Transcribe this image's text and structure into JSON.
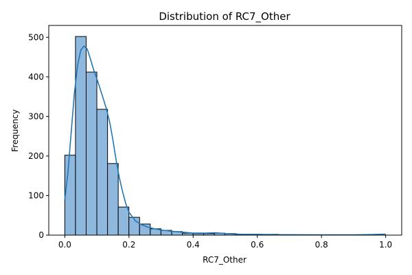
{
  "chart_data": {
    "type": "histogram",
    "title": "Distribution of RC7_Other",
    "xlabel": "RC7_Other",
    "ylabel": "Frequency",
    "xlim": [
      -0.05,
      1.05
    ],
    "ylim": [
      0,
      530
    ],
    "xticks": [
      0.0,
      0.2,
      0.4,
      0.6,
      0.8,
      1.0
    ],
    "xtick_labels": [
      "0.0",
      "0.2",
      "0.4",
      "0.6",
      "0.8",
      "1.0"
    ],
    "yticks": [
      0,
      100,
      200,
      300,
      400,
      500
    ],
    "ytick_labels": [
      "0",
      "100",
      "200",
      "300",
      "400",
      "500"
    ],
    "bin_start": 0.0,
    "bin_width": 0.0333,
    "counts": [
      202,
      502,
      412,
      318,
      181,
      71,
      45,
      28,
      16,
      12,
      9,
      5,
      4,
      4,
      5,
      4,
      1,
      1,
      1,
      2,
      1,
      1,
      1,
      1,
      1,
      1,
      1,
      1,
      1,
      2
    ],
    "kde": {
      "x": [
        0.0,
        0.01,
        0.02,
        0.03,
        0.04,
        0.05,
        0.06,
        0.07,
        0.08,
        0.09,
        0.1,
        0.11,
        0.12,
        0.13,
        0.14,
        0.15,
        0.16,
        0.17,
        0.18,
        0.19,
        0.2,
        0.22,
        0.24,
        0.26,
        0.28,
        0.3,
        0.33,
        0.36,
        0.4,
        0.44,
        0.47,
        0.5,
        0.55,
        0.6,
        0.65,
        0.7,
        0.8,
        0.9,
        0.97,
        1.0
      ],
      "y": [
        90,
        160,
        260,
        360,
        430,
        468,
        478,
        470,
        445,
        418,
        395,
        370,
        345,
        318,
        285,
        240,
        190,
        145,
        110,
        80,
        58,
        36,
        26,
        20,
        16,
        13,
        10,
        8,
        5,
        5,
        6,
        4,
        2,
        2,
        1,
        1,
        0.5,
        0.5,
        1.5,
        2.5
      ]
    },
    "bar_color": "#8fb8de",
    "bar_edge_color": "#000000",
    "kde_color": "#1f77b4",
    "grid": false,
    "legend": false
  }
}
